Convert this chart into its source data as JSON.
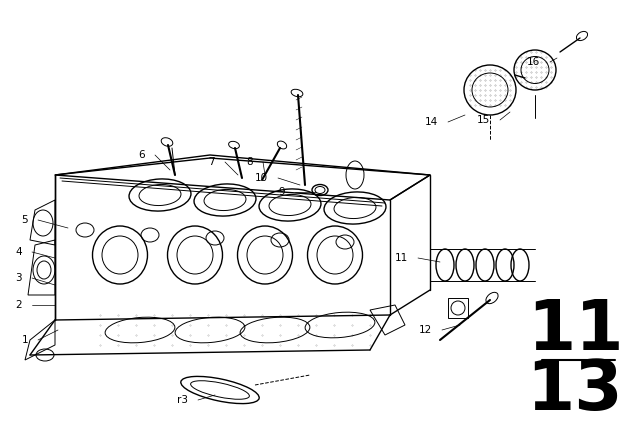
{
  "bg_color": "#ffffff",
  "line_color": "#000000",
  "fig_width": 6.4,
  "fig_height": 4.48,
  "dpi": 100,
  "section_number_top": "11",
  "section_number_bottom": "13",
  "section_fontsize": 52,
  "label_fontsize": 7.5
}
